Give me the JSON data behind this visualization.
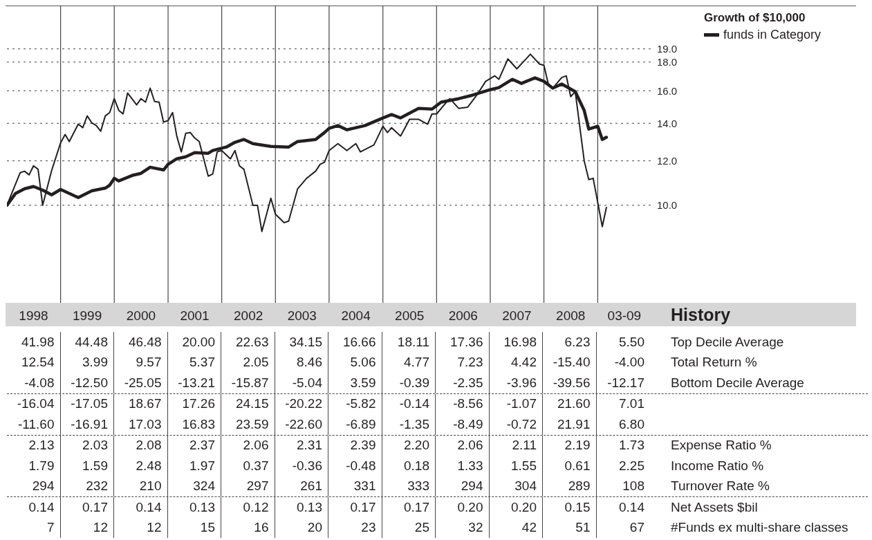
{
  "chart_data": {
    "type": "line",
    "legend_title": "Growth of $10,000",
    "legend": "top right",
    "grid": "y",
    "log": "y",
    "marker": "none",
    "line_style": "solid",
    "xlim": [
      "1998-01",
      "2010-01"
    ],
    "xticks": [
      {
        "value": "1998-07",
        "label": "1998"
      },
      {
        "value": "1999-07",
        "label": "1999"
      },
      {
        "value": "2000-07",
        "label": "2000"
      },
      {
        "value": "2001-07",
        "label": "2001"
      },
      {
        "value": "2002-07",
        "label": "2002"
      },
      {
        "value": "2003-07",
        "label": "2003"
      },
      {
        "value": "2004-07",
        "label": "2004"
      },
      {
        "value": "2005-07",
        "label": "2005"
      },
      {
        "value": "2006-07",
        "label": "2006"
      },
      {
        "value": "2007-07",
        "label": "2007"
      },
      {
        "value": "2008-07",
        "label": "2008"
      },
      {
        "value": "2009-07",
        "label": "03-09"
      }
    ],
    "ylim": [
      6.7,
      22.7
    ],
    "yticks": [
      {
        "value": 10,
        "label": "10.0"
      },
      {
        "value": 12,
        "label": "12.0"
      },
      {
        "value": 14,
        "label": "14.0"
      },
      {
        "value": 16,
        "label": "16.0"
      },
      {
        "value": 18,
        "label": "18.0"
      },
      {
        "value": 19,
        "label": "19.0"
      }
    ],
    "ref_lines": [
      {
        "axis": "x",
        "value": "1999-01"
      },
      {
        "axis": "x",
        "value": "2000-01"
      },
      {
        "axis": "x",
        "value": "2001-01"
      },
      {
        "axis": "x",
        "value": "2002-01"
      },
      {
        "axis": "x",
        "value": "2003-01"
      },
      {
        "axis": "x",
        "value": "2004-01"
      },
      {
        "axis": "x",
        "value": "2005-01"
      },
      {
        "axis": "x",
        "value": "2006-01"
      },
      {
        "axis": "x",
        "value": "2007-01"
      },
      {
        "axis": "x",
        "value": "2008-01"
      },
      {
        "axis": "x",
        "value": "2009-01"
      }
    ],
    "series": [
      {
        "name": "funds in Category",
        "color": "#231f20",
        "x": [
          "1998-01",
          "1998-03",
          "1998-05",
          "1998-07",
          "1998-09",
          "1998-11",
          "1999-01",
          "1999-03",
          "1999-05",
          "1999-08",
          "1999-11",
          "1999-12",
          "2000-01",
          "2000-02",
          "2000-05",
          "2000-07",
          "2000-09",
          "2000-12",
          "2001-01",
          "2001-03",
          "2001-05",
          "2001-07",
          "2001-10",
          "2001-11",
          "2002-02",
          "2002-04",
          "2002-06",
          "2002-08",
          "2002-12",
          "2003-04",
          "2003-06",
          "2003-10",
          "2003-12",
          "2004-01",
          "2004-03",
          "2004-05",
          "2004-09",
          "2005-01",
          "2005-03",
          "2005-05",
          "2005-09",
          "2005-12",
          "2006-02",
          "2006-06",
          "2006-09",
          "2007-01",
          "2007-03",
          "2007-06",
          "2007-08",
          "2007-11",
          "2008-01",
          "2008-03",
          "2008-05",
          "2008-08",
          "2008-10",
          "2008-11",
          "2009-01",
          "2009-02",
          "2009-03"
        ],
        "values": [
          10.0,
          10.5,
          10.7,
          10.8,
          10.64,
          10.44,
          10.67,
          10.5,
          10.32,
          10.61,
          10.73,
          10.86,
          11.17,
          11.05,
          11.3,
          11.4,
          11.69,
          11.56,
          11.83,
          12.1,
          12.2,
          12.41,
          12.38,
          12.52,
          12.7,
          12.95,
          13.1,
          12.88,
          12.73,
          12.7,
          12.99,
          13.1,
          13.48,
          13.71,
          13.87,
          13.63,
          13.87,
          14.31,
          14.51,
          14.31,
          14.88,
          14.84,
          15.27,
          15.49,
          15.71,
          16.07,
          16.21,
          16.77,
          16.49,
          16.87,
          16.63,
          16.17,
          16.45,
          15.94,
          14.76,
          13.67,
          13.83,
          13.1,
          13.22
        ]
      },
      {
        "color": "#231f20",
        "x": [
          "1998-01",
          "1998-04",
          "1998-05",
          "1998-06",
          "1998-07",
          "1998-08",
          "1998-09",
          "1998-11",
          "1999-01",
          "1999-02",
          "1999-03",
          "1999-05",
          "1999-06",
          "1999-07",
          "1999-08",
          "1999-09",
          "1999-10",
          "1999-11",
          "1999-12",
          "2000-01",
          "2000-02",
          "2000-03",
          "2000-04",
          "2000-06",
          "2000-07",
          "2000-08",
          "2000-09",
          "2000-10",
          "2000-11",
          "2000-12",
          "2001-01",
          "2001-02",
          "2001-03",
          "2001-04",
          "2001-05",
          "2001-06",
          "2001-07",
          "2001-08",
          "2001-10",
          "2001-11",
          "2001-12",
          "2002-01",
          "2002-03",
          "2002-04",
          "2002-05",
          "2002-06",
          "2002-08",
          "2002-09",
          "2002-10",
          "2002-12",
          "2003-01",
          "2003-03",
          "2003-04",
          "2003-06",
          "2003-08",
          "2003-10",
          "2003-11",
          "2003-12",
          "2004-01",
          "2004-03",
          "2004-05",
          "2004-07",
          "2004-08",
          "2004-11",
          "2005-01",
          "2005-02",
          "2005-03",
          "2005-05",
          "2005-06",
          "2005-07",
          "2005-09",
          "2005-11",
          "2005-12",
          "2006-01",
          "2006-03",
          "2006-04",
          "2006-06",
          "2006-08",
          "2006-10",
          "2006-12",
          "2007-02",
          "2007-03",
          "2007-05",
          "2007-07",
          "2007-10",
          "2007-12",
          "2008-01",
          "2008-02",
          "2008-03",
          "2008-05",
          "2008-06",
          "2008-07",
          "2008-08",
          "2008-10",
          "2008-11",
          "2008-12",
          "2009-02",
          "2009-03"
        ],
        "values": [
          10.0,
          11.43,
          11.5,
          11.33,
          11.76,
          11.59,
          10.0,
          11.53,
          12.92,
          13.37,
          12.99,
          13.95,
          13.75,
          14.43,
          14.03,
          13.87,
          13.55,
          14.43,
          14.63,
          15.49,
          14.76,
          14.55,
          15.85,
          15.1,
          15.49,
          15.27,
          16.17,
          15.31,
          15.27,
          14.07,
          14.15,
          14.63,
          13.29,
          12.45,
          13.44,
          13.48,
          13.18,
          12.99,
          11.27,
          11.37,
          12.45,
          12.52,
          12.1,
          12.52,
          11.76,
          11.59,
          10.0,
          10.0,
          8.98,
          10.29,
          9.64,
          9.31,
          9.37,
          10.7,
          11.17,
          11.5,
          11.83,
          11.93,
          12.52,
          12.88,
          12.52,
          12.88,
          12.45,
          12.81,
          13.83,
          13.48,
          13.75,
          13.29,
          13.75,
          14.23,
          14.23,
          13.95,
          14.55,
          14.55,
          15.18,
          15.49,
          14.88,
          14.96,
          15.71,
          16.63,
          17.01,
          16.77,
          18.23,
          17.51,
          18.59,
          17.86,
          17.76,
          16.4,
          16.17,
          16.89,
          17.01,
          15.62,
          15.94,
          12.0,
          11.11,
          11.17,
          9.16,
          9.91
        ]
      }
    ],
    "annotations": [
      "History",
      "41.98",
      "44.48",
      "46.48",
      "20.00",
      "22.63",
      "34.15",
      "16.66",
      "18.11",
      "17.36",
      "16.98",
      "6.23",
      "5.50",
      "Top Decile Average",
      "12.54",
      "3.99",
      "9.57",
      "5.37",
      "2.05",
      "8.46",
      "5.06",
      "4.77",
      "7.23",
      "4.42",
      "-15.40",
      "-4.00",
      "Total Return %",
      "-4.08",
      "-12.50",
      "-25.05",
      "-13.21",
      "-15.87",
      "-5.04",
      "3.59",
      "-0.39",
      "-2.35",
      "-3.96",
      "-39.56",
      "-12.17",
      "Bottom Decile Average",
      "-16.04",
      "-17.05",
      "18.67",
      "17.26",
      "24.15",
      "-20.22",
      "-5.82",
      "-0.14",
      "-8.56",
      "-1.07",
      "21.60",
      "7.01",
      null,
      "-11.60",
      "-16.91",
      "17.03",
      "16.83",
      "23.59",
      "-22.60",
      "-6.89",
      "-1.35",
      "-8.49",
      "-0.72",
      "21.91",
      "6.80",
      null,
      "2.13",
      "2.03",
      "2.08",
      "2.37",
      "2.06",
      "2.31",
      "2.39",
      "2.20",
      "2.06",
      "2.11",
      "2.19",
      "1.73",
      "Expense Ratio %",
      "1.79",
      "1.59",
      "2.48",
      "1.97",
      "0.37",
      "-0.36",
      "-0.48",
      "0.18",
      "1.33",
      "1.55",
      "0.61",
      "2.25",
      "Income Ratio %",
      "294",
      "232",
      "210",
      "324",
      "297",
      "261",
      "331",
      "333",
      "294",
      "304",
      "289",
      "108",
      "Turnover Rate %",
      "0.14",
      "0.17",
      "0.14",
      "0.13",
      "0.12",
      "0.13",
      "0.17",
      "0.17",
      "0.20",
      "0.20",
      "0.15",
      "0.14",
      "Net Assets $bil",
      "7",
      "12",
      "12",
      "15",
      "16",
      "20",
      "23",
      "25",
      "32",
      "42",
      "51",
      "67",
      "#Funds ex multi-share classes"
    ]
  }
}
